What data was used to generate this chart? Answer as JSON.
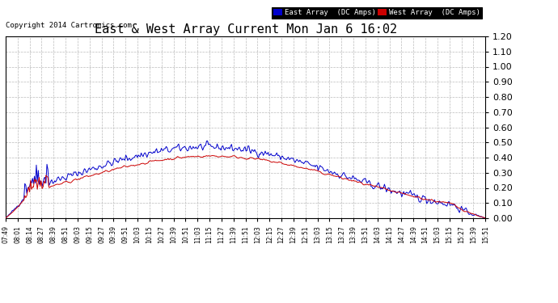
{
  "title": "East & West Array Current Mon Jan 6 16:02",
  "copyright": "Copyright 2014 Cartronics.com",
  "east_label": "East Array  (DC Amps)",
  "west_label": "West Array  (DC Amps)",
  "east_color": "#0000cc",
  "west_color": "#cc0000",
  "background_color": "#ffffff",
  "grid_color": "#bbbbbb",
  "ylim": [
    0.0,
    1.2
  ],
  "yticks": [
    0.0,
    0.1,
    0.2,
    0.3,
    0.4,
    0.5,
    0.6,
    0.7,
    0.8,
    0.9,
    1.0,
    1.1,
    1.2
  ],
  "x_tick_labels": [
    "07:49",
    "08:01",
    "08:14",
    "08:27",
    "08:39",
    "08:51",
    "09:03",
    "09:15",
    "09:27",
    "09:39",
    "09:51",
    "10:03",
    "10:15",
    "10:27",
    "10:39",
    "10:51",
    "11:03",
    "11:15",
    "11:27",
    "11:39",
    "11:51",
    "12:03",
    "12:15",
    "12:27",
    "12:39",
    "12:51",
    "13:03",
    "13:15",
    "13:27",
    "13:39",
    "13:51",
    "14:03",
    "14:15",
    "14:27",
    "14:39",
    "14:51",
    "15:03",
    "15:15",
    "15:27",
    "15:39",
    "15:51"
  ],
  "num_points": 500,
  "seed": 42
}
